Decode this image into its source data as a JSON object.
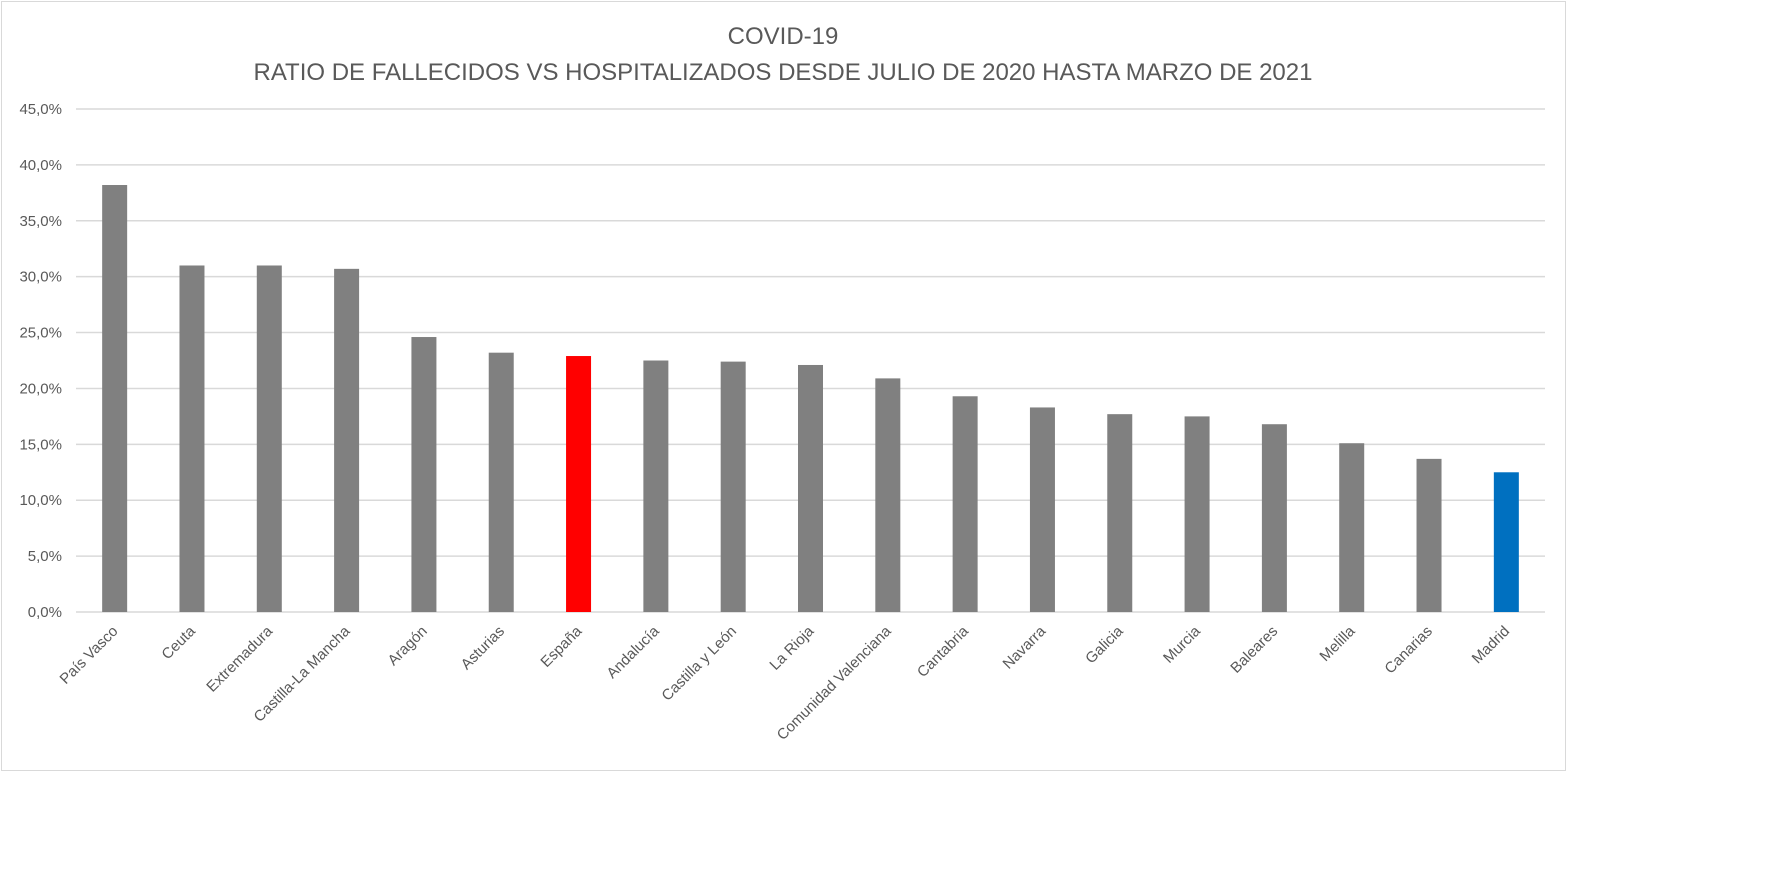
{
  "chart_data": {
    "type": "bar",
    "title": "COVID-19",
    "subtitle": "RATIO DE FALLECIDOS VS HOSPITALIZADOS DESDE JULIO DE 2020 HASTA MARZO DE 2021",
    "xlabel": "",
    "ylabel": "",
    "ylim": [
      0,
      45
    ],
    "yticks": [
      "0,0%",
      "5,0%",
      "10,0%",
      "15,0%",
      "20,0%",
      "25,0%",
      "30,0%",
      "35,0%",
      "40,0%",
      "45,0%"
    ],
    "grid": true,
    "categories": [
      "País Vasco",
      "Ceuta",
      "Extremadura",
      "Castilla-La Mancha",
      "Aragón",
      "Asturias",
      "España",
      "Andalucía",
      "Castilla y León",
      "La Rioja",
      "Comunidad Valenciana",
      "Cantabria",
      "Navarra",
      "Galicia",
      "Murcia",
      "Baleares",
      "Melilla",
      "Canarias",
      "Madrid"
    ],
    "values": [
      38.2,
      31.0,
      31.0,
      30.7,
      24.6,
      23.2,
      22.9,
      22.5,
      22.4,
      22.1,
      20.9,
      19.3,
      18.3,
      17.7,
      17.5,
      16.8,
      15.1,
      13.7,
      12.5
    ],
    "colors": {
      "default": "#808080",
      "España": "#ff0000",
      "Madrid": "#0070c0"
    }
  }
}
